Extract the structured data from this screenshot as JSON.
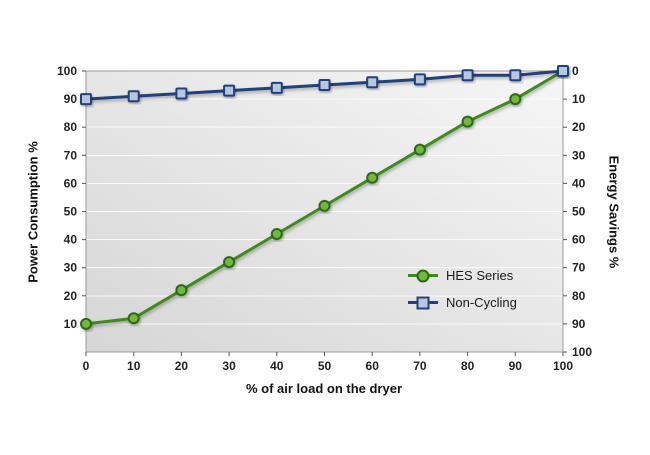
{
  "chart_data": {
    "type": "line",
    "x": [
      0,
      10,
      20,
      30,
      40,
      50,
      60,
      70,
      80,
      90,
      100
    ],
    "series": [
      {
        "name": "HES Series",
        "values": [
          10,
          12,
          22,
          32,
          42,
          52,
          62,
          72,
          82,
          90,
          100
        ],
        "color": "#3f8a1e",
        "marker": "circle",
        "marker_fill": "#72b840",
        "marker_stroke": "#2d6a12"
      },
      {
        "name": "Non-Cycling",
        "values": [
          90,
          91,
          92,
          93,
          94,
          95,
          96,
          97,
          98.5,
          98.5,
          100
        ],
        "color": "#24407a",
        "marker": "square",
        "marker_fill": "#b9c6e0",
        "marker_stroke": "#24407a"
      }
    ],
    "title": "",
    "xlabel": "% of air load on the dryer",
    "ylabel_left": "Power Consumption %",
    "ylabel_right": "Energy Savings %",
    "left_ticks": [
      100,
      90,
      80,
      70,
      60,
      50,
      40,
      30,
      20,
      10
    ],
    "right_ticks": [
      0,
      10,
      20,
      30,
      40,
      50,
      60,
      70,
      80,
      90,
      100
    ],
    "x_ticks": [
      0,
      10,
      20,
      30,
      40,
      50,
      60,
      70,
      80,
      90,
      100
    ],
    "ylim": [
      0,
      100
    ],
    "xlim": [
      0,
      100
    ],
    "grid": true,
    "legend_position": "inside-right",
    "plot_bg_top": "#f6f6f6",
    "plot_bg_bottom": "#d6d6d6",
    "grid_color": "#ffffff",
    "border_color": "#9a9a9a"
  }
}
